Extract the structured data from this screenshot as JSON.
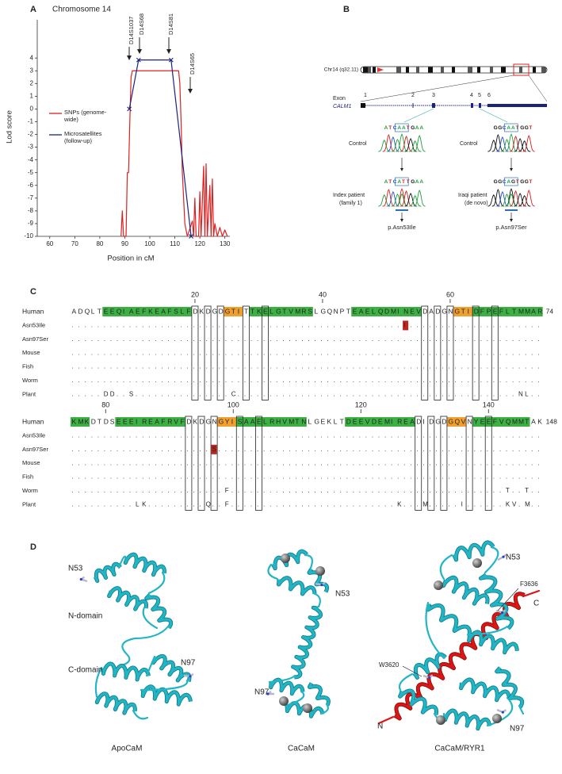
{
  "chart_data": {
    "type": "line",
    "panel_label": "A",
    "title": "Chromosome 14",
    "xlabel": "Position in cM",
    "ylabel": "Lod score",
    "xlim": [
      55,
      132
    ],
    "ylim": [
      -10,
      7
    ],
    "xticks": [
      60,
      70,
      80,
      90,
      100,
      110,
      120,
      130
    ],
    "yticks": [
      4,
      3,
      2,
      1,
      0,
      -1,
      -2,
      -3,
      -4,
      -5,
      -6,
      -7,
      -8,
      -9,
      -10
    ],
    "annotations": [
      "D14S1037",
      "D14S68",
      "D14S81",
      "D14S65"
    ],
    "series": [
      {
        "name": "SNPs (genome-wide)",
        "color": "#e02020",
        "x": [
          88.5,
          89,
          89.5,
          90.5,
          91,
          91.5,
          92,
          92.5,
          93,
          110,
          111.5,
          112,
          112.5,
          113,
          114,
          115,
          117,
          117.5,
          118,
          118.5,
          119.5,
          120,
          120.5,
          121.5,
          122,
          122.5,
          123,
          124,
          124.5,
          125,
          125.5,
          126,
          127,
          128,
          129,
          130,
          131
        ],
        "values": [
          -10,
          -8,
          -10,
          -10,
          -5,
          -5,
          -1,
          2.5,
          3,
          3,
          3,
          2,
          -1,
          -5,
          -9,
          -10,
          -8.8,
          -10,
          -7,
          -10,
          -10,
          -6.5,
          -10,
          -4.5,
          -10,
          -4.3,
          -10,
          -6,
          -10,
          -5.5,
          -10,
          -9,
          -10,
          -9.3,
          -10,
          -9.5,
          -10
        ]
      },
      {
        "name": "Microsatellites (follow-up)",
        "color": "#1a237e",
        "x": [
          91.8,
          95.5,
          108.5,
          116.5
        ],
        "values": [
          0,
          3.85,
          3.85,
          -10
        ]
      }
    ]
  },
  "panel_b": {
    "label": "B",
    "chromosome": "Chr14 (q32.11)",
    "exon_label": "Exon",
    "gene": "CALM1",
    "exons": [
      1,
      2,
      3,
      4,
      5,
      6
    ],
    "left": {
      "control": "Control",
      "control_seq": "ATCAATGAA",
      "patient": "Index patient",
      "patient_note": "(family 1)",
      "patient_seq": "ATCATTGAA",
      "mutation": "p.Asn53Ile"
    },
    "right": {
      "control": "Control",
      "control_seq": "GGCAATGGT",
      "patient": "Iraqi patient",
      "patient_note": "(de novo)",
      "patient_seq": "GGCAGTGGT",
      "mutation": "p.Asn97Ser"
    }
  },
  "panel_c": {
    "label": "C",
    "row_labels": [
      "Human",
      "Asn53Ile",
      "Asn97Ser",
      "Mouse",
      "Fish",
      "Worm",
      "Plant"
    ],
    "blocks": [
      {
        "numbers": [
          20,
          40,
          60
        ],
        "end": 74,
        "rows": [
          "ADQLTEEQIAEFKEAFSLFDKDGDGTITTKELGTVMRSLGQNPTEAELQDMINEVDADGNGTIDFPEFLTMMAR",
          "....................................................I.....................",
          "..........................................................................",
          "..........................................................................",
          "..........................................................................",
          "..........................................................................",
          ".....DD..S...............C............................................NL.."
        ]
      },
      {
        "numbers": [
          80,
          100,
          120,
          140
        ],
        "end": 148,
        "rows": [
          "KMKDTDSEEEIREAFRVFDKDGNGYISAAELRHVMTNLGEKLTDEEVDEMIREADIDGDGQVNYEEFVQMMTAK",
          "..........................................................................",
          "......................S...................................................",
          "..........................................................................",
          "..........................................................................",
          "........................F...........................................T..T..",
          "..........LK.........Q..F..........................K...M.....I......KV.M.."
        ]
      }
    ]
  },
  "panel_d": {
    "label": "D",
    "structures": [
      {
        "name": "ApoCaM",
        "labels": [
          "N53",
          "N-domain",
          "C-domain",
          "N97"
        ]
      },
      {
        "name": "CaCaM",
        "labels": [
          "N53",
          "N97"
        ]
      },
      {
        "name": "CaCaM/RYR1",
        "labels": [
          "N53",
          "F3636",
          "C",
          "W3620",
          "N",
          "N97"
        ]
      }
    ]
  }
}
